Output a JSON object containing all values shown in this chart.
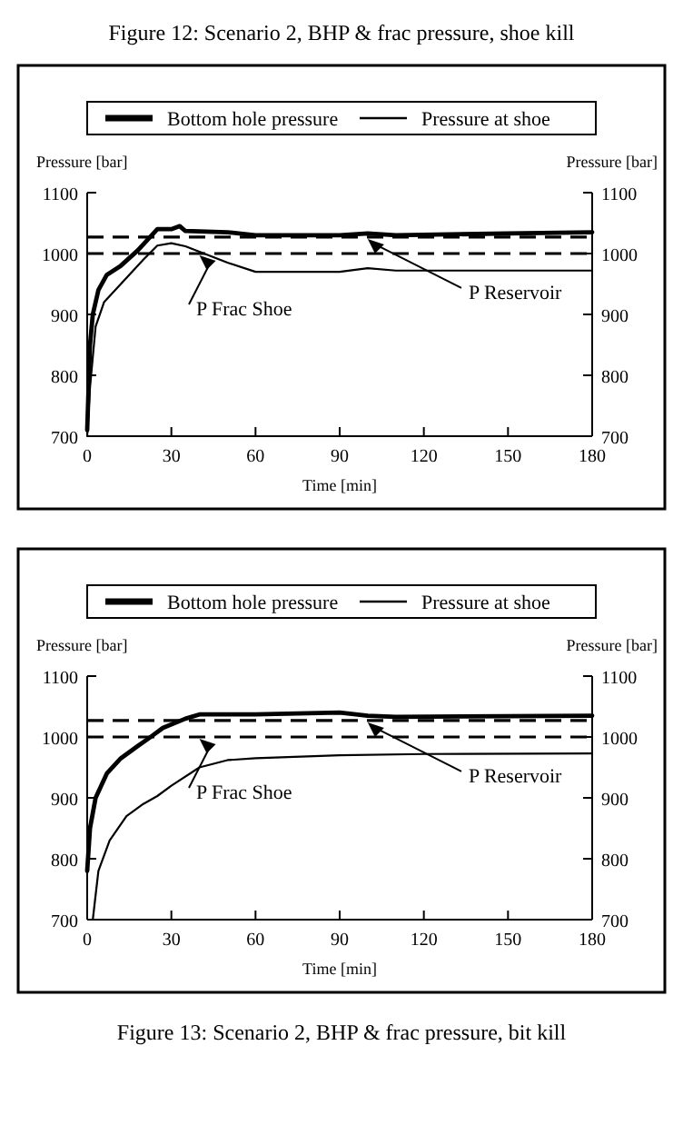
{
  "chart_data": [
    {
      "type": "line",
      "title": "Figure 12:  Scenario 2, BHP & frac pressure, shoe kill",
      "xlabel": "Time [min]",
      "ylabel": "Pressure [bar]",
      "y2label": "Pressure [bar]",
      "legend": "top",
      "xlim": [
        0,
        180
      ],
      "xticks": [
        0,
        30,
        60,
        90,
        120,
        150,
        180
      ],
      "ylim": [
        700,
        1100
      ],
      "yticks": [
        700,
        800,
        900,
        1000,
        1100
      ],
      "y2lim": [
        700,
        1100
      ],
      "y2ticks": [
        700,
        800,
        900,
        1000,
        1100
      ],
      "series": [
        {
          "name": "Bottom hole pressure",
          "color": "#000000",
          "x": [
            0,
            1,
            2,
            4,
            7,
            12,
            18,
            25,
            30,
            33,
            35,
            50,
            60,
            90,
            100,
            110,
            150,
            180
          ],
          "values": [
            710,
            850,
            900,
            940,
            965,
            980,
            1005,
            1040,
            1040,
            1045,
            1037,
            1035,
            1030,
            1030,
            1033,
            1030,
            1033,
            1035
          ]
        },
        {
          "name": "Pressure at shoe",
          "color": "#000000",
          "x": [
            0,
            1,
            3,
            6,
            12,
            20,
            25,
            30,
            35,
            50,
            60,
            90,
            100,
            110,
            180
          ],
          "values": [
            700,
            780,
            880,
            920,
            950,
            990,
            1013,
            1017,
            1012,
            985,
            970,
            970,
            976,
            972,
            972
          ]
        }
      ],
      "ref_lines": [
        {
          "axis": "y",
          "value": 1000,
          "label": "P Frac Shoe",
          "line_style": "dashed",
          "color": "#000000"
        },
        {
          "axis": "y",
          "value": 1027,
          "label": "P Reservoir",
          "line_style": "dashed",
          "color": "#000000"
        }
      ]
    },
    {
      "type": "line",
      "title": "Figure 13:  Scenario 2, BHP & frac pressure, bit kill",
      "xlabel": "Time [min]",
      "ylabel": "Pressure [bar]",
      "y2label": "Pressure [bar]",
      "legend": "top",
      "xlim": [
        0,
        180
      ],
      "xticks": [
        0,
        30,
        60,
        90,
        120,
        150,
        180
      ],
      "ylim": [
        700,
        1100
      ],
      "yticks": [
        700,
        800,
        900,
        1000,
        1100
      ],
      "y2lim": [
        700,
        1100
      ],
      "y2ticks": [
        700,
        800,
        900,
        1000,
        1100
      ],
      "series": [
        {
          "name": "Bottom hole pressure",
          "color": "#000000",
          "x": [
            0,
            1,
            3,
            7,
            12,
            18,
            22,
            27,
            35,
            40,
            60,
            90,
            100,
            110,
            180
          ],
          "values": [
            780,
            850,
            900,
            940,
            965,
            985,
            998,
            1015,
            1030,
            1037,
            1037,
            1040,
            1035,
            1033,
            1035
          ]
        },
        {
          "name": "Pressure at shoe",
          "color": "#000000",
          "x": [
            2,
            4,
            8,
            14,
            20,
            25,
            30,
            40,
            50,
            60,
            90,
            120,
            180
          ],
          "values": [
            700,
            780,
            830,
            870,
            890,
            903,
            920,
            950,
            962,
            965,
            970,
            972,
            973
          ]
        }
      ],
      "ref_lines": [
        {
          "axis": "y",
          "value": 1000,
          "label": "P Frac Shoe",
          "line_style": "dashed",
          "color": "#000000"
        },
        {
          "axis": "y",
          "value": 1027,
          "label": "P Reservoir",
          "line_style": "dashed",
          "color": "#000000"
        }
      ]
    }
  ]
}
